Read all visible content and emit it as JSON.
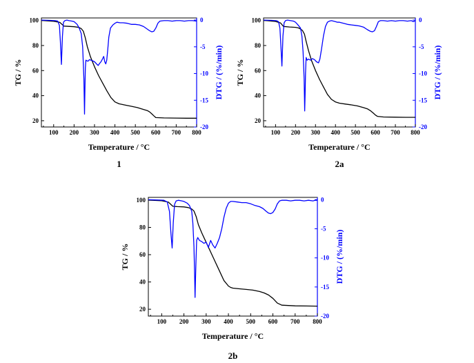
{
  "colors": {
    "tg_curve": "#000000",
    "dtg_curve": "#0000ff",
    "right_axis": "#0000ff",
    "left_axis": "#000000"
  },
  "chart_data": [
    {
      "type": "line",
      "panel_label": "1",
      "xlabel": "Temperature / °C",
      "ylabel": "TG / %",
      "y2label": "DTG / (%/min)",
      "xlim": [
        40,
        800
      ],
      "ylim": [
        15,
        102
      ],
      "y2lim": [
        -20,
        0.4
      ],
      "x_ticks": [
        100,
        200,
        300,
        400,
        500,
        600,
        700,
        800
      ],
      "y_ticks": [
        20,
        40,
        60,
        80,
        100
      ],
      "y2_ticks": [
        0,
        -5,
        -10,
        -15,
        -20
      ],
      "x_tick_labels": [
        "100",
        "200",
        "300",
        "400",
        "500",
        "600",
        "700",
        "800"
      ],
      "y_tick_labels": [
        "20",
        "40",
        "60",
        "80",
        "100"
      ],
      "y2_tick_labels": [
        "0",
        "-5",
        "-10",
        "-15",
        "-20"
      ],
      "grid": false,
      "series": [
        {
          "axis": "left",
          "x": [
            40,
            60,
            100,
            130,
            150,
            180,
            200,
            215,
            225,
            235,
            245,
            255,
            265,
            280,
            300,
            320,
            340,
            360,
            380,
            400,
            420,
            450,
            480,
            510,
            540,
            560,
            570,
            580,
            590,
            600,
            640,
            700,
            750,
            800
          ],
          "y": [
            100,
            99.8,
            99.3,
            98.5,
            95.5,
            95.2,
            95,
            94.7,
            94.3,
            93.5,
            91.5,
            86,
            79,
            71,
            63,
            56,
            50,
            44,
            38.5,
            35,
            33.5,
            32.5,
            31.5,
            30.5,
            29,
            28,
            27,
            25.5,
            24,
            22.5,
            22.2,
            22.1,
            22.0,
            22.0
          ]
        },
        {
          "axis": "right",
          "x": [
            40,
            80,
            110,
            120,
            128,
            133,
            138,
            143,
            148,
            155,
            165,
            175,
            190,
            200,
            215,
            225,
            235,
            242,
            248,
            251,
            253,
            255,
            258,
            262,
            268,
            275,
            290,
            300,
            310,
            318,
            325,
            332,
            340,
            345,
            350,
            355,
            360,
            365,
            370,
            378,
            390,
            400,
            410,
            425,
            440,
            460,
            480,
            500,
            520,
            540,
            555,
            570,
            580,
            590,
            600,
            610,
            620,
            640,
            660,
            680,
            700,
            720,
            740,
            760,
            780,
            800
          ],
          "y": [
            0,
            -0.05,
            -0.1,
            -0.2,
            -1.0,
            -4.0,
            -8.3,
            -3.0,
            -0.4,
            -0.1,
            0.0,
            -0.1,
            -0.2,
            -0.3,
            -0.8,
            -1.5,
            -2.5,
            -5.0,
            -11.0,
            -17.6,
            -13.0,
            -9.0,
            -7.5,
            -7.6,
            -7.7,
            -7.4,
            -7.6,
            -7.8,
            -8.2,
            -8.5,
            -8.1,
            -7.8,
            -7.2,
            -6.8,
            -7.8,
            -8.2,
            -7.5,
            -5.5,
            -3.2,
            -1.5,
            -0.9,
            -0.6,
            -0.4,
            -0.5,
            -0.5,
            -0.6,
            -0.8,
            -0.8,
            -0.9,
            -1.2,
            -1.6,
            -2.0,
            -2.2,
            -2.1,
            -1.5,
            -0.6,
            -0.2,
            -0.1,
            -0.1,
            -0.2,
            -0.1,
            -0.1,
            -0.2,
            -0.1,
            -0.1,
            -0.2
          ]
        }
      ]
    },
    {
      "type": "line",
      "panel_label": "2a",
      "xlabel": "Temperature / °C",
      "ylabel": "TG / %",
      "y2label": "DTG / (%/min)",
      "xlim": [
        40,
        800
      ],
      "ylim": [
        15,
        102
      ],
      "y2lim": [
        -20,
        0.4
      ],
      "x_ticks": [
        100,
        200,
        300,
        400,
        500,
        600,
        700,
        800
      ],
      "y_ticks": [
        20,
        40,
        60,
        80,
        100
      ],
      "y2_ticks": [
        0,
        -5,
        -10,
        -15,
        -20
      ],
      "x_tick_labels": [
        "100",
        "200",
        "300",
        "400",
        "500",
        "600",
        "700",
        "800"
      ],
      "y_tick_labels": [
        "20",
        "40",
        "60",
        "80",
        "100"
      ],
      "y2_tick_labels": [
        "0",
        "-5",
        "-10",
        "-15",
        "-20"
      ],
      "grid": false,
      "series": [
        {
          "axis": "left",
          "x": [
            40,
            60,
            100,
            125,
            140,
            170,
            200,
            215,
            225,
            235,
            245,
            252,
            265,
            280,
            300,
            320,
            340,
            360,
            380,
            400,
            420,
            450,
            480,
            510,
            540,
            560,
            575,
            590,
            600,
            610,
            640,
            700,
            750,
            800
          ],
          "y": [
            100,
            99.8,
            99.2,
            98,
            95.2,
            94.8,
            94.5,
            94,
            93.2,
            92,
            89,
            84,
            76,
            68,
            60,
            53,
            47,
            41,
            37,
            35,
            34,
            33.3,
            32.6,
            31.8,
            30.5,
            29.5,
            28,
            26,
            24.5,
            23.5,
            23,
            22.8,
            22.7,
            22.7
          ]
        },
        {
          "axis": "right",
          "x": [
            40,
            80,
            105,
            115,
            122,
            127,
            132,
            137,
            143,
            150,
            160,
            175,
            190,
            200,
            210,
            225,
            232,
            238,
            243,
            246,
            248,
            250,
            253,
            258,
            265,
            275,
            285,
            295,
            305,
            315,
            322,
            330,
            340,
            350,
            360,
            370,
            380,
            390,
            400,
            410,
            420,
            440,
            460,
            480,
            500,
            520,
            540,
            560,
            575,
            585,
            595,
            605,
            615,
            625,
            640,
            660,
            680,
            700,
            720,
            740,
            760,
            780,
            790,
            800
          ],
          "y": [
            0,
            -0.05,
            -0.1,
            -0.3,
            -1.5,
            -5.0,
            -8.6,
            -3.0,
            -0.5,
            -0.1,
            0.0,
            -0.1,
            -0.2,
            -0.4,
            -0.8,
            -1.5,
            -3.0,
            -6.0,
            -11.0,
            -17.0,
            -14.0,
            -10.0,
            -7.0,
            -7.5,
            -7.3,
            -7.5,
            -7.2,
            -7.4,
            -7.8,
            -8.0,
            -7.3,
            -5.5,
            -3.0,
            -1.2,
            -0.4,
            -0.2,
            -0.1,
            -0.2,
            -0.3,
            -0.4,
            -0.4,
            -0.6,
            -0.8,
            -0.9,
            -1.0,
            -1.1,
            -1.3,
            -1.8,
            -2.1,
            -2.2,
            -2.0,
            -1.2,
            -0.3,
            -0.1,
            -0.1,
            -0.2,
            -0.1,
            -0.2,
            -0.1,
            -0.1,
            -0.2,
            -0.1,
            -0.3,
            -0.1
          ]
        }
      ]
    },
    {
      "type": "line",
      "panel_label": "2b",
      "xlabel": "Temperature / °C",
      "ylabel": "TG / %",
      "y2label": "DTG / (%/min)",
      "xlim": [
        40,
        800
      ],
      "ylim": [
        15,
        102
      ],
      "y2lim": [
        -20,
        0.4
      ],
      "x_ticks": [
        100,
        200,
        300,
        400,
        500,
        600,
        700,
        800
      ],
      "y_ticks": [
        20,
        40,
        60,
        80,
        100
      ],
      "y2_ticks": [
        0,
        -5,
        -10,
        -15,
        -20
      ],
      "x_tick_labels": [
        "100",
        "200",
        "300",
        "400",
        "500",
        "600",
        "700",
        "800"
      ],
      "y_tick_labels": [
        "20",
        "40",
        "60",
        "80",
        "100"
      ],
      "y2_tick_labels": [
        "0",
        "-5",
        "-10",
        "-15",
        "-20"
      ],
      "grid": false,
      "series": [
        {
          "axis": "left",
          "x": [
            40,
            60,
            100,
            130,
            150,
            170,
            200,
            220,
            235,
            245,
            255,
            265,
            280,
            300,
            320,
            340,
            360,
            380,
            400,
            410,
            420,
            450,
            480,
            510,
            540,
            560,
            580,
            600,
            620,
            640,
            700,
            750,
            800
          ],
          "y": [
            100,
            99.9,
            99.5,
            98.5,
            95.5,
            95.2,
            95,
            94.5,
            93.5,
            92,
            88,
            82,
            76,
            69,
            62,
            55,
            48,
            41,
            37,
            36,
            35.5,
            35,
            34.5,
            34,
            33,
            32,
            30.5,
            28,
            24.5,
            23,
            22.5,
            22.4,
            22.3
          ]
        },
        {
          "axis": "right",
          "x": [
            40,
            80,
            110,
            125,
            135,
            142,
            147,
            152,
            158,
            165,
            175,
            190,
            200,
            215,
            225,
            235,
            240,
            245,
            248,
            250,
            253,
            257,
            262,
            270,
            280,
            290,
            300,
            310,
            320,
            330,
            340,
            350,
            360,
            370,
            380,
            390,
            400,
            410,
            420,
            440,
            460,
            480,
            500,
            520,
            540,
            555,
            570,
            580,
            590,
            600,
            610,
            620,
            630,
            640,
            660,
            680,
            700,
            720,
            740,
            760,
            780,
            790,
            800
          ],
          "y": [
            0,
            -0.05,
            -0.1,
            -0.4,
            -2.0,
            -6.0,
            -8.3,
            -4.0,
            -0.8,
            -0.2,
            -0.1,
            -0.2,
            -0.3,
            -0.6,
            -1.0,
            -2.0,
            -4.0,
            -8.0,
            -13.0,
            -16.8,
            -12.0,
            -7.0,
            -6.5,
            -7.0,
            -7.2,
            -7.5,
            -7.3,
            -8.2,
            -7.0,
            -7.8,
            -8.3,
            -7.5,
            -6.5,
            -5.0,
            -3.0,
            -1.5,
            -0.6,
            -0.3,
            -0.3,
            -0.4,
            -0.5,
            -0.5,
            -0.7,
            -1.0,
            -1.2,
            -1.5,
            -2.0,
            -2.3,
            -2.4,
            -2.2,
            -1.6,
            -0.7,
            -0.2,
            -0.1,
            -0.1,
            -0.2,
            -0.1,
            -0.1,
            -0.2,
            -0.1,
            -0.2,
            -0.1,
            -0.1
          ]
        }
      ]
    }
  ]
}
